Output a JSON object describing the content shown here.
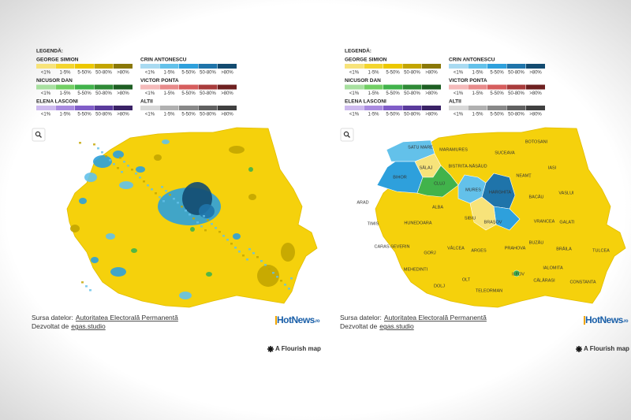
{
  "legend": {
    "title": "LEGENDĂ:",
    "bins": [
      "<1%",
      "1-5%",
      "5-50%",
      "50-80%",
      ">80%"
    ],
    "groups": [
      {
        "name": "GEORGE SIMION",
        "colors": [
          "#f7e37a",
          "#f3d52e",
          "#ecc800",
          "#c3a500",
          "#8a7808"
        ]
      },
      {
        "name": "CRIN ANTONESCU",
        "colors": [
          "#a9daf1",
          "#63c1ea",
          "#2ea0dc",
          "#1f74aa",
          "#134b70"
        ]
      },
      {
        "name": "NICUSOR DAN",
        "colors": [
          "#a8e0a0",
          "#72cf64",
          "#41b34b",
          "#2e8a36",
          "#1d5e22"
        ]
      },
      {
        "name": "VICTOR PONTA",
        "colors": [
          "#f5baba",
          "#e88b8b",
          "#d65d5d",
          "#a83b3b",
          "#6e2020"
        ]
      },
      {
        "name": "ELENA LASCONI",
        "colors": [
          "#cdbaee",
          "#a98be0",
          "#805dc8",
          "#5a3b9c",
          "#3a2266"
        ]
      },
      {
        "name": "ALTII",
        "colors": [
          "#d8d8d8",
          "#b0b0b0",
          "#888888",
          "#606060",
          "#404040"
        ]
      }
    ]
  },
  "footer": {
    "source_label": "Sursa datelor:",
    "source_link": "Autoritatea Electorală Permanentă",
    "dev_label": "Dezvoltat de",
    "dev_link": "egas.studio",
    "logo": "HotNews",
    "logo_suffix": ".ro",
    "credit": "A Flourish map"
  },
  "map_fill": "#f5d10c",
  "county_labels": [
    "SATU MARE",
    "MARAMURES",
    "BOTOSANI",
    "SUCEAVA",
    "SĂLAJ",
    "BISTRITA-NĂSĂUD",
    "BIHOR",
    "NEAMȚ",
    "IASI",
    "CLUJ",
    "MURES",
    "HARGHITA",
    "BACĂU",
    "VASLUI",
    "ARAD",
    "ALBA",
    "SIBIU",
    "BRAȘOV",
    "VRANCEA",
    "GALATI",
    "TIMIS",
    "HUNEDOARA",
    "BUZĂU",
    "CARAS-SEVERIN",
    "GORJ",
    "VÂLCEA",
    "ARGES",
    "PRAHOVA",
    "BRĂILA",
    "TULCEA",
    "IALOMITA",
    "MEHEDINTI",
    "ILFOV",
    "CĂLĂRASI",
    "CONSTANTA",
    "OLT",
    "DOLJ",
    "TELEORMAN"
  ]
}
